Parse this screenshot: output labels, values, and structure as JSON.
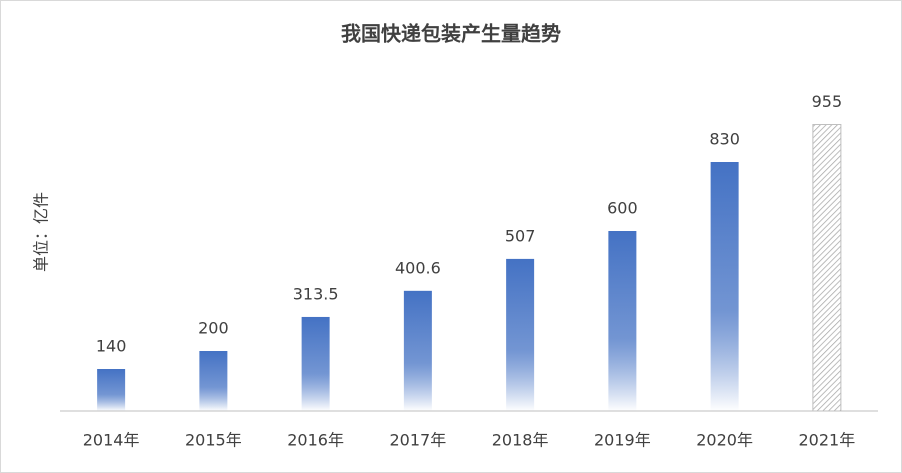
{
  "chart_data": {
    "type": "bar",
    "title": "我国快递包装产生量趋势",
    "y_label": "单位：亿件",
    "categories": [
      "2014年",
      "2015年",
      "2016年",
      "2017年",
      "2018年",
      "2019年",
      "2020年",
      "2021年"
    ],
    "values": [
      140,
      200,
      313.5,
      400.6,
      507,
      600,
      830,
      955
    ],
    "hatched": [
      false,
      false,
      false,
      false,
      false,
      false,
      false,
      true
    ],
    "color": "#4472c4",
    "ylim": [
      0,
      1000
    ],
    "grid": false
  }
}
